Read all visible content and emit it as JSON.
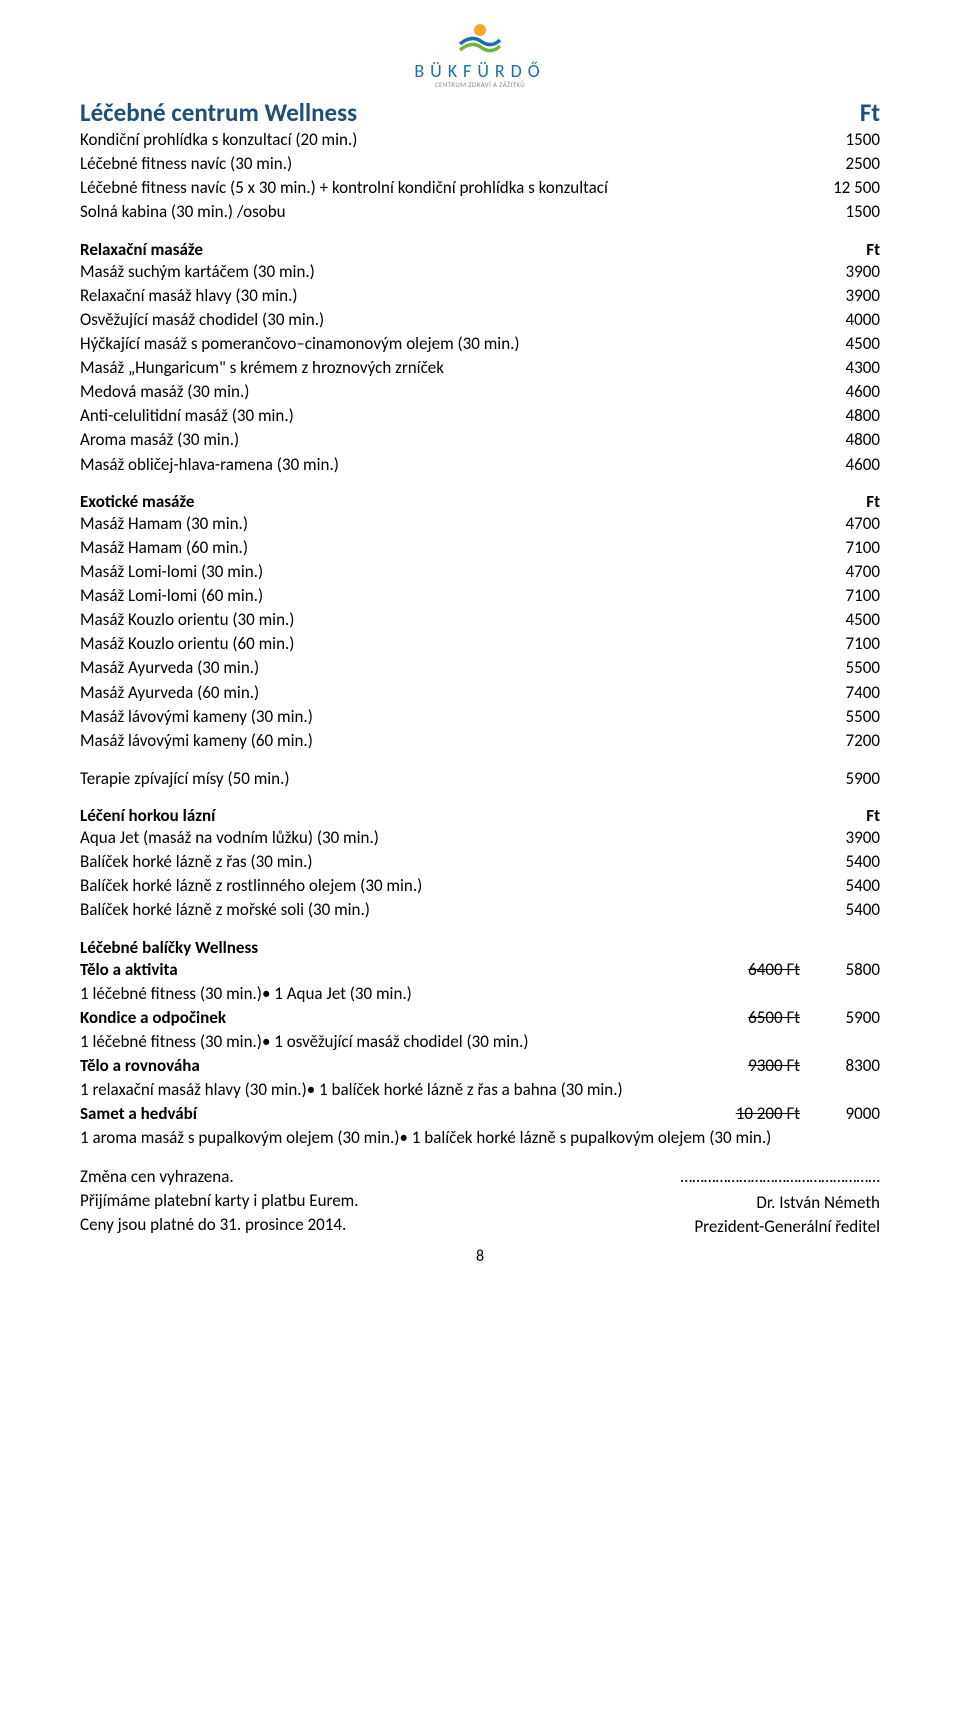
{
  "logo": {
    "brand": "BÜKFÜRDŐ",
    "tagline": "CENTRUM ZDRAVÍ A ZÁŽITKŮ"
  },
  "title": {
    "text": "Léčebné centrum Wellness",
    "unit": "Ft"
  },
  "intro": [
    {
      "label": "Kondiční prohlídka s konzultací (20 min.)",
      "price": "1500"
    },
    {
      "label": "Léčebné fitness navíc (30 min.)",
      "price": "2500"
    },
    {
      "label": "Léčebné fitness navíc (5 x 30 min.) + kontrolní kondiční prohlídka s konzultací",
      "price": "12 500"
    },
    {
      "label": "Solná kabina (30 min.) /osobu",
      "price": "1500"
    }
  ],
  "relax_head": {
    "label": "Relaxační masáže",
    "unit": "Ft"
  },
  "relax": [
    {
      "label": "Masáž suchým kartáčem (30 min.)",
      "price": "3900"
    },
    {
      "label": "Relaxační masáž hlavy (30 min.)",
      "price": "3900"
    },
    {
      "label": "Osvěžující masáž chodidel (30 min.)",
      "price": "4000"
    },
    {
      "label": "Hýčkající masáž s pomerančovo–cinamonovým olejem (30 min.)",
      "price": "4500"
    },
    {
      "label": "Masáž „Hungaricum\" s krémem z hroznových zrníček",
      "price": "4300"
    },
    {
      "label": "Medová masáž (30 min.)",
      "price": "4600"
    },
    {
      "label": "Anti-celulitidní masáž (30 min.)",
      "price": "4800"
    },
    {
      "label": "Aroma masáž (30 min.)",
      "price": "4800"
    },
    {
      "label": "Masáž obličej-hlava-ramena (30 min.)",
      "price": "4600"
    }
  ],
  "exotic_head": {
    "label": "Exotické masáže",
    "unit": "Ft"
  },
  "exotic": [
    {
      "label": "Masáž Hamam (30 min.)",
      "price": "4700"
    },
    {
      "label": "Masáž Hamam (60 min.)",
      "price": "7100"
    },
    {
      "label": "Masáž Lomi-lomi (30 min.)",
      "price": "4700"
    },
    {
      "label": "Masáž Lomi-lomi (60 min.)",
      "price": "7100"
    },
    {
      "label": "Masáž Kouzlo orientu (30 min.)",
      "price": "4500"
    },
    {
      "label": "Masáž Kouzlo orientu (60 min.)",
      "price": "7100"
    },
    {
      "label": "Masáž Ayurveda (30 min.)",
      "price": "5500"
    },
    {
      "label": "Masáž Ayurveda (60 min.)",
      "price": "7400"
    },
    {
      "label": "Masáž lávovými kameny (30 min.)",
      "price": "5500"
    },
    {
      "label": "Masáž lávovými kameny (60 min.)",
      "price": "7200"
    }
  ],
  "therapy": {
    "label": "Terapie zpívající mísy (50 min.)",
    "price": "5900"
  },
  "hotbath_head": {
    "label": "Léčení horkou lázní",
    "unit": "Ft"
  },
  "hotbath": [
    {
      "label": "Aqua Jet (masáž na vodním lůžku) (30 min.)",
      "price": "3900"
    },
    {
      "label": "Balíček horké lázně z řas (30 min.)",
      "price": "5400"
    },
    {
      "label": "Balíček horké lázně z rostlinného olejem (30 min.)",
      "price": "5400"
    },
    {
      "label": "Balíček horké lázně z mořské soli (30 min.)",
      "price": "5400"
    }
  ],
  "packages_head": "Léčebné balíčky Wellness",
  "packages": [
    {
      "name": "Tělo a aktivita",
      "old": "6400 Ft",
      "new": "5800",
      "detail": "1 léčebné fitness (30 min.)• 1 Aqua Jet (30 min.)"
    },
    {
      "name": "Kondice a odpočinek",
      "old": "6500 Ft",
      "new": "5900",
      "detail": "1 léčebné fitness (30 min.)• 1 osvěžující masáž chodidel (30 min.)"
    },
    {
      "name": "Tělo a rovnováha",
      "old": "9300 Ft",
      "new": "8300",
      "detail": "1 relaxační masáž hlavy (30 min.)• 1 balíček horké lázně z řas a bahna (30 min.)"
    },
    {
      "name": "Samet a hedvábí",
      "old": "10 200 Ft",
      "new": "9000",
      "detail": "1 aroma masáž s pupalkovým olejem (30 min.)• 1 balíček horké lázně s pupalkovým olejem (30 min.)"
    }
  ],
  "footer": {
    "left1": "Změna cen vyhrazena.",
    "left2": "Přijímáme platební karty i platbu Eurem.",
    "left3": "Ceny jsou platné do 31. prosince 2014.",
    "dots": "……………………………………………",
    "right1": "Dr. István Németh",
    "right2": "Prezident-Generální ředitel"
  },
  "page_number": "8",
  "colors": {
    "heading": "#1f4e79",
    "text": "#000000",
    "logo": "#1b6fa8"
  }
}
